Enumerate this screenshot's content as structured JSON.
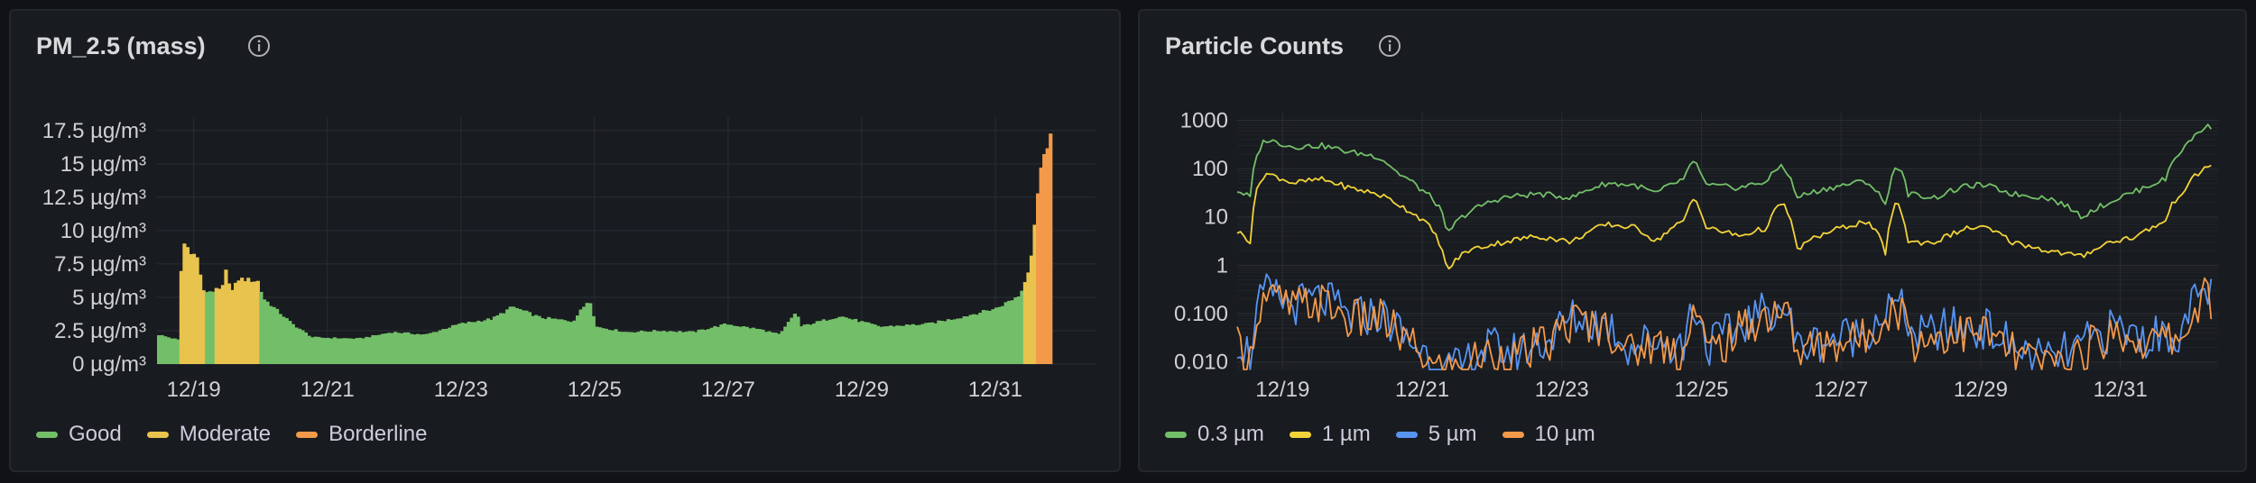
{
  "panels": {
    "pm25": {
      "title": "PM_2.5 (mass)",
      "legend": [
        {
          "label": "Good",
          "color": "#73bf69"
        },
        {
          "label": "Moderate",
          "color": "#e8c34d"
        },
        {
          "label": "Borderline",
          "color": "#f2994a"
        }
      ]
    },
    "particles": {
      "title": "Particle Counts",
      "legend": [
        {
          "label": "0.3 µm",
          "color": "#73bf69"
        },
        {
          "label": "1 µm",
          "color": "#f2d33b"
        },
        {
          "label": "5 µm",
          "color": "#5794f2"
        },
        {
          "label": "10 µm",
          "color": "#f2994a"
        }
      ]
    }
  },
  "chart_data": [
    {
      "type": "bar",
      "title": "PM_2.5 (mass)",
      "ylabel": "µg/m³",
      "ylim": [
        0,
        18.5
      ],
      "yticks": [
        "0 µg/m³",
        "2.5 µg/m³",
        "5 µg/m³",
        "7.5 µg/m³",
        "10 µg/m³",
        "12.5 µg/m³",
        "15 µg/m³",
        "17.5 µg/m³"
      ],
      "xticks": [
        "12/19",
        "12/21",
        "12/23",
        "12/25",
        "12/27",
        "12/29",
        "12/31"
      ],
      "x_range_days": [
        0,
        14.05
      ],
      "xtick_days": [
        0.55,
        2.55,
        4.55,
        6.55,
        8.55,
        10.55,
        12.55
      ],
      "thresholds": {
        "moderate": 5.5,
        "borderline": 12.0
      },
      "series_keypoints": [
        [
          0.0,
          2.2
        ],
        [
          0.3,
          1.8
        ],
        [
          0.35,
          9.2
        ],
        [
          0.6,
          7.8
        ],
        [
          0.65,
          5.4
        ],
        [
          0.95,
          5.6
        ],
        [
          1.0,
          7.0
        ],
        [
          1.1,
          5.5
        ],
        [
          1.2,
          6.4
        ],
        [
          1.5,
          6.2
        ],
        [
          1.55,
          5.0
        ],
        [
          2.0,
          3.0
        ],
        [
          2.3,
          2.0
        ],
        [
          3.0,
          1.9
        ],
        [
          3.5,
          2.4
        ],
        [
          4.0,
          2.2
        ],
        [
          4.5,
          3.0
        ],
        [
          5.0,
          3.4
        ],
        [
          5.3,
          4.3
        ],
        [
          5.7,
          3.5
        ],
        [
          6.2,
          3.2
        ],
        [
          6.45,
          4.9
        ],
        [
          6.55,
          2.8
        ],
        [
          7.0,
          2.4
        ],
        [
          7.5,
          2.5
        ],
        [
          8.0,
          2.4
        ],
        [
          8.5,
          3.0
        ],
        [
          9.0,
          2.6
        ],
        [
          9.3,
          2.2
        ],
        [
          9.55,
          4.0
        ],
        [
          9.6,
          2.8
        ],
        [
          10.2,
          3.6
        ],
        [
          10.8,
          2.8
        ],
        [
          11.5,
          3.0
        ],
        [
          12.0,
          3.5
        ],
        [
          12.55,
          4.2
        ],
        [
          12.9,
          5.2
        ],
        [
          13.05,
          7.6
        ],
        [
          13.15,
          12.5
        ],
        [
          13.25,
          16.0
        ],
        [
          13.35,
          17.2
        ]
      ]
    },
    {
      "type": "line",
      "title": "Particle Counts",
      "yscale": "log",
      "ylim": [
        0.007,
        1500
      ],
      "yticks": [
        "0.010",
        "0.100",
        "1",
        "10",
        "100",
        "1000"
      ],
      "xticks": [
        "12/19",
        "12/21",
        "12/23",
        "12/25",
        "12/27",
        "12/29",
        "12/31"
      ],
      "x_range_days": [
        0,
        14.05
      ],
      "xtick_days": [
        0.65,
        2.65,
        4.65,
        6.65,
        8.65,
        10.65,
        12.65
      ],
      "series": [
        {
          "name": "0.3 µm",
          "color": "#73bf69",
          "keypoints": [
            [
              0.0,
              35
            ],
            [
              0.2,
              25
            ],
            [
              0.4,
              400
            ],
            [
              0.8,
              280
            ],
            [
              1.2,
              300
            ],
            [
              1.6,
              220
            ],
            [
              2.0,
              180
            ],
            [
              2.3,
              80
            ],
            [
              2.6,
              40
            ],
            [
              2.9,
              15
            ],
            [
              3.0,
              4
            ],
            [
              3.3,
              12
            ],
            [
              3.8,
              25
            ],
            [
              4.3,
              30
            ],
            [
              4.8,
              25
            ],
            [
              5.3,
              50
            ],
            [
              5.7,
              45
            ],
            [
              6.0,
              30
            ],
            [
              6.4,
              60
            ],
            [
              6.55,
              140
            ],
            [
              6.7,
              45
            ],
            [
              7.2,
              40
            ],
            [
              7.6,
              55
            ],
            [
              7.8,
              120
            ],
            [
              8.0,
              25
            ],
            [
              8.5,
              40
            ],
            [
              9.0,
              55
            ],
            [
              9.3,
              15
            ],
            [
              9.45,
              120
            ],
            [
              9.6,
              30
            ],
            [
              10.0,
              25
            ],
            [
              10.5,
              45
            ],
            [
              10.7,
              45
            ],
            [
              11.1,
              30
            ],
            [
              11.6,
              25
            ],
            [
              12.1,
              10
            ],
            [
              12.5,
              20
            ],
            [
              12.9,
              35
            ],
            [
              13.3,
              60
            ],
            [
              13.6,
              300
            ],
            [
              13.85,
              700
            ],
            [
              13.95,
              750
            ]
          ]
        },
        {
          "name": "1 µm",
          "color": "#f2d33b",
          "keypoints": [
            [
              0.0,
              5
            ],
            [
              0.2,
              3
            ],
            [
              0.4,
              80
            ],
            [
              0.8,
              50
            ],
            [
              1.2,
              60
            ],
            [
              1.6,
              40
            ],
            [
              2.0,
              30
            ],
            [
              2.4,
              15
            ],
            [
              2.8,
              5
            ],
            [
              3.0,
              0.7
            ],
            [
              3.3,
              2
            ],
            [
              3.8,
              3
            ],
            [
              4.3,
              4
            ],
            [
              4.8,
              3
            ],
            [
              5.3,
              7
            ],
            [
              5.7,
              6
            ],
            [
              6.0,
              3
            ],
            [
              6.4,
              8
            ],
            [
              6.55,
              25
            ],
            [
              6.7,
              6
            ],
            [
              7.2,
              4
            ],
            [
              7.6,
              6
            ],
            [
              7.8,
              20
            ],
            [
              8.0,
              2
            ],
            [
              8.5,
              5
            ],
            [
              9.0,
              8
            ],
            [
              9.3,
              1.5
            ],
            [
              9.45,
              20
            ],
            [
              9.6,
              3
            ],
            [
              10.0,
              3
            ],
            [
              10.5,
              6
            ],
            [
              10.7,
              6
            ],
            [
              11.1,
              3
            ],
            [
              11.6,
              2
            ],
            [
              12.1,
              1.5
            ],
            [
              12.5,
              3
            ],
            [
              12.9,
              4
            ],
            [
              13.3,
              8
            ],
            [
              13.6,
              40
            ],
            [
              13.85,
              100
            ],
            [
              13.95,
              120
            ]
          ]
        },
        {
          "name": "5 µm",
          "color": "#5794f2",
          "keypoints": [
            [
              0.0,
              0.03
            ],
            [
              0.2,
              0.012
            ],
            [
              0.4,
              0.25
            ],
            [
              0.8,
              0.15
            ],
            [
              1.2,
              0.2
            ],
            [
              1.6,
              0.08
            ],
            [
              2.0,
              0.1
            ],
            [
              2.4,
              0.03
            ],
            [
              2.7,
              0.015
            ],
            [
              2.8,
              0.007
            ],
            [
              3.2,
              0.007
            ],
            [
              3.6,
              0.02
            ],
            [
              4.0,
              0.015
            ],
            [
              4.5,
              0.03
            ],
            [
              4.8,
              0.08
            ],
            [
              5.3,
              0.06
            ],
            [
              5.6,
              0.02
            ],
            [
              6.0,
              0.03
            ],
            [
              6.4,
              0.02
            ],
            [
              6.55,
              0.15
            ],
            [
              6.7,
              0.02
            ],
            [
              7.1,
              0.04
            ],
            [
              7.5,
              0.1
            ],
            [
              7.8,
              0.15
            ],
            [
              8.0,
              0.02
            ],
            [
              8.5,
              0.03
            ],
            [
              9.0,
              0.04
            ],
            [
              9.45,
              0.15
            ],
            [
              9.7,
              0.03
            ],
            [
              10.2,
              0.05
            ],
            [
              10.7,
              0.05
            ],
            [
              11.1,
              0.02
            ],
            [
              11.6,
              0.01
            ],
            [
              12.1,
              0.02
            ],
            [
              12.6,
              0.05
            ],
            [
              13.0,
              0.03
            ],
            [
              13.4,
              0.04
            ],
            [
              13.6,
              0.05
            ],
            [
              13.85,
              0.3
            ],
            [
              13.95,
              0.28
            ]
          ]
        },
        {
          "name": "10 µm",
          "color": "#f2994a",
          "keypoints": [
            [
              0.0,
              0.02
            ],
            [
              0.2,
              0.01
            ],
            [
              0.4,
              0.22
            ],
            [
              0.8,
              0.13
            ],
            [
              1.2,
              0.17
            ],
            [
              1.6,
              0.07
            ],
            [
              2.0,
              0.08
            ],
            [
              2.4,
              0.025
            ],
            [
              2.7,
              0.012
            ],
            [
              2.8,
              0.007
            ],
            [
              3.2,
              0.007
            ],
            [
              3.6,
              0.015
            ],
            [
              4.0,
              0.012
            ],
            [
              4.5,
              0.025
            ],
            [
              4.8,
              0.07
            ],
            [
              5.3,
              0.05
            ],
            [
              5.6,
              0.015
            ],
            [
              6.0,
              0.025
            ],
            [
              6.4,
              0.015
            ],
            [
              6.55,
              0.13
            ],
            [
              6.7,
              0.015
            ],
            [
              7.1,
              0.03
            ],
            [
              7.5,
              0.08
            ],
            [
              7.8,
              0.13
            ],
            [
              8.0,
              0.015
            ],
            [
              8.5,
              0.025
            ],
            [
              9.0,
              0.03
            ],
            [
              9.45,
              0.13
            ],
            [
              9.7,
              0.025
            ],
            [
              10.2,
              0.04
            ],
            [
              10.7,
              0.04
            ],
            [
              11.1,
              0.015
            ],
            [
              11.6,
              0.008
            ],
            [
              12.1,
              0.015
            ],
            [
              12.6,
              0.04
            ],
            [
              13.0,
              0.025
            ],
            [
              13.4,
              0.03
            ],
            [
              13.6,
              0.04
            ],
            [
              13.85,
              0.22
            ],
            [
              13.95,
              0.2
            ]
          ]
        }
      ]
    }
  ]
}
